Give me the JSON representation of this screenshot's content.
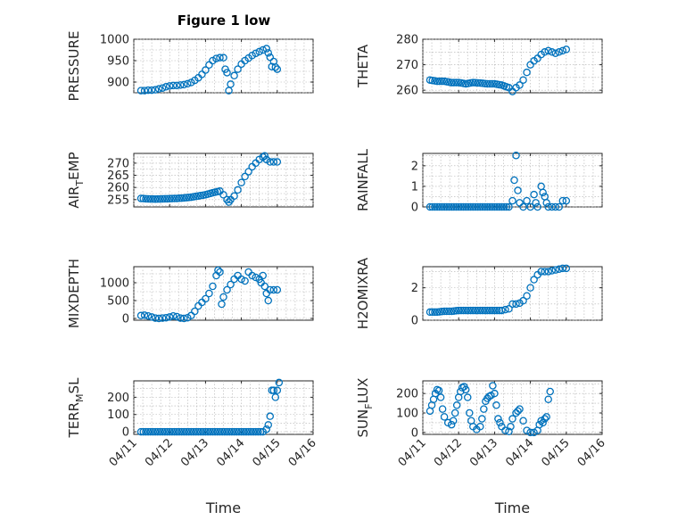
{
  "figure": {
    "title": "Figure 1 low",
    "marker_color": "#0072BD"
  },
  "chart_data": [
    {
      "id": "pressure",
      "type": "scatter",
      "title": "Figure 1 low",
      "ylabel": "PRESSURE",
      "xlabel": "",
      "xlim": [
        0,
        5
      ],
      "ylim": [
        875,
        1000
      ],
      "yticks": [
        900,
        950,
        1000
      ],
      "xticks": [
        0,
        1,
        2,
        3,
        4,
        5
      ],
      "xtick_labels": [
        "04/11",
        "04/12",
        "04/13",
        "04/14",
        "04/15",
        "04/16"
      ],
      "show_xtick_labels": false,
      "points": [
        [
          0.2,
          880
        ],
        [
          0.3,
          880
        ],
        [
          0.4,
          881
        ],
        [
          0.5,
          881
        ],
        [
          0.6,
          882
        ],
        [
          0.7,
          884
        ],
        [
          0.8,
          886
        ],
        [
          0.9,
          889
        ],
        [
          1.0,
          891
        ],
        [
          1.1,
          892
        ],
        [
          1.2,
          892
        ],
        [
          1.3,
          893
        ],
        [
          1.4,
          894
        ],
        [
          1.5,
          896
        ],
        [
          1.6,
          899
        ],
        [
          1.7,
          904
        ],
        [
          1.8,
          910
        ],
        [
          1.9,
          918
        ],
        [
          2.0,
          928
        ],
        [
          2.1,
          940
        ],
        [
          2.2,
          950
        ],
        [
          2.3,
          955
        ],
        [
          2.4,
          957
        ],
        [
          2.5,
          957
        ],
        [
          2.55,
          930
        ],
        [
          2.6,
          922
        ],
        [
          2.65,
          880
        ],
        [
          2.7,
          895
        ],
        [
          2.8,
          915
        ],
        [
          2.9,
          930
        ],
        [
          3.0,
          942
        ],
        [
          3.1,
          950
        ],
        [
          3.2,
          956
        ],
        [
          3.3,
          962
        ],
        [
          3.4,
          967
        ],
        [
          3.5,
          971
        ],
        [
          3.6,
          975
        ],
        [
          3.7,
          978
        ],
        [
          3.75,
          968
        ],
        [
          3.8,
          958
        ],
        [
          3.85,
          936
        ],
        [
          3.9,
          948
        ],
        [
          3.95,
          935
        ],
        [
          4.0,
          930
        ]
      ]
    },
    {
      "id": "theta",
      "type": "scatter",
      "ylabel": "THETA",
      "xlabel": "",
      "xlim": [
        0,
        5
      ],
      "ylim": [
        259,
        280
      ],
      "yticks": [
        260,
        270,
        280
      ],
      "xticks": [
        0,
        1,
        2,
        3,
        4,
        5
      ],
      "xtick_labels": [
        "04/11",
        "04/12",
        "04/13",
        "04/14",
        "04/15",
        "04/16"
      ],
      "show_xtick_labels": false,
      "points": [
        [
          0.2,
          264
        ],
        [
          0.4,
          263.5
        ],
        [
          0.6,
          263.5
        ],
        [
          0.8,
          263
        ],
        [
          1.0,
          263
        ],
        [
          1.2,
          262.5
        ],
        [
          1.4,
          263
        ],
        [
          1.6,
          262.8
        ],
        [
          1.8,
          262.5
        ],
        [
          2.0,
          262.5
        ],
        [
          2.2,
          262
        ],
        [
          2.4,
          261
        ],
        [
          2.5,
          259.5
        ],
        [
          2.6,
          261
        ],
        [
          2.7,
          262
        ],
        [
          2.8,
          264
        ],
        [
          2.9,
          267
        ],
        [
          3.0,
          270
        ],
        [
          3.1,
          271.5
        ],
        [
          3.2,
          272.5
        ],
        [
          3.3,
          274
        ],
        [
          3.4,
          275
        ],
        [
          3.5,
          275.5
        ],
        [
          3.6,
          275
        ],
        [
          3.7,
          274.5
        ],
        [
          3.8,
          275
        ],
        [
          3.9,
          275.5
        ],
        [
          4.0,
          276
        ]
      ]
    },
    {
      "id": "air_temp",
      "type": "scatter",
      "ylabel": "AIR_TEMP",
      "ylabel_main": "AIR",
      "ylabel_sub": "T",
      "ylabel_rest": "EMP",
      "xlabel": "",
      "xlim": [
        0,
        5
      ],
      "ylim": [
        252,
        274
      ],
      "yticks": [
        255,
        260,
        265,
        270
      ],
      "xticks": [
        0,
        1,
        2,
        3,
        4,
        5
      ],
      "xtick_labels": [
        "04/11",
        "04/12",
        "04/13",
        "04/14",
        "04/15",
        "04/16"
      ],
      "show_xtick_labels": false,
      "points": [
        [
          0.2,
          255.5
        ],
        [
          0.4,
          255.3
        ],
        [
          0.6,
          255.2
        ],
        [
          0.8,
          255.3
        ],
        [
          1.0,
          255.4
        ],
        [
          1.2,
          255.5
        ],
        [
          1.4,
          255.7
        ],
        [
          1.6,
          256.0
        ],
        [
          1.8,
          256.5
        ],
        [
          2.0,
          257.0
        ],
        [
          2.2,
          257.8
        ],
        [
          2.4,
          258.5
        ],
        [
          2.5,
          257.0
        ],
        [
          2.6,
          255.0
        ],
        [
          2.65,
          254.0
        ],
        [
          2.7,
          255.0
        ],
        [
          2.8,
          256.5
        ],
        [
          2.9,
          259.0
        ],
        [
          3.0,
          262.0
        ],
        [
          3.1,
          264.5
        ],
        [
          3.2,
          266.5
        ],
        [
          3.3,
          268.5
        ],
        [
          3.4,
          270.0
        ],
        [
          3.5,
          271.5
        ],
        [
          3.6,
          272.5
        ],
        [
          3.65,
          273.0
        ],
        [
          3.7,
          271.5
        ],
        [
          3.8,
          270.5
        ],
        [
          3.9,
          270.5
        ],
        [
          4.0,
          270.5
        ]
      ]
    },
    {
      "id": "rainfall",
      "type": "scatter",
      "ylabel": "RAINFALL",
      "xlabel": "",
      "xlim": [
        0,
        5
      ],
      "ylim": [
        0,
        2.6
      ],
      "yticks": [
        0,
        1,
        2
      ],
      "xticks": [
        0,
        1,
        2,
        3,
        4,
        5
      ],
      "xtick_labels": [
        "04/11",
        "04/12",
        "04/13",
        "04/14",
        "04/15",
        "04/16"
      ],
      "show_xtick_labels": false,
      "points": [
        [
          0.2,
          0
        ],
        [
          0.4,
          0
        ],
        [
          0.6,
          0
        ],
        [
          0.8,
          0
        ],
        [
          1.0,
          0
        ],
        [
          1.2,
          0
        ],
        [
          1.4,
          0
        ],
        [
          1.6,
          0
        ],
        [
          1.8,
          0
        ],
        [
          2.0,
          0
        ],
        [
          2.2,
          0
        ],
        [
          2.4,
          0
        ],
        [
          2.5,
          0.3
        ],
        [
          2.55,
          1.3
        ],
        [
          2.6,
          2.5
        ],
        [
          2.65,
          0.8
        ],
        [
          2.7,
          0.2
        ],
        [
          2.8,
          0
        ],
        [
          2.9,
          0.3
        ],
        [
          3.0,
          0
        ],
        [
          3.1,
          0.6
        ],
        [
          3.15,
          0.2
        ],
        [
          3.2,
          0
        ],
        [
          3.3,
          1.0
        ],
        [
          3.35,
          0.7
        ],
        [
          3.4,
          0.5
        ],
        [
          3.45,
          0.2
        ],
        [
          3.5,
          0
        ],
        [
          3.6,
          0
        ],
        [
          3.7,
          0
        ],
        [
          3.8,
          0
        ],
        [
          3.9,
          0.3
        ],
        [
          4.0,
          0.3
        ]
      ]
    },
    {
      "id": "mixdepth",
      "type": "scatter",
      "ylabel": "MIXDEPTH",
      "xlabel": "",
      "xlim": [
        0,
        5
      ],
      "ylim": [
        -50,
        1450
      ],
      "yticks": [
        0,
        500,
        1000
      ],
      "xticks": [
        0,
        1,
        2,
        3,
        4,
        5
      ],
      "xtick_labels": [
        "04/11",
        "04/12",
        "04/13",
        "04/14",
        "04/15",
        "04/16"
      ],
      "show_xtick_labels": false,
      "points": [
        [
          0.2,
          80
        ],
        [
          0.3,
          90
        ],
        [
          0.4,
          70
        ],
        [
          0.5,
          40
        ],
        [
          0.6,
          10
        ],
        [
          0.7,
          0
        ],
        [
          0.8,
          10
        ],
        [
          0.9,
          20
        ],
        [
          1.0,
          40
        ],
        [
          1.1,
          70
        ],
        [
          1.2,
          50
        ],
        [
          1.3,
          10
        ],
        [
          1.4,
          0
        ],
        [
          1.5,
          20
        ],
        [
          1.6,
          80
        ],
        [
          1.7,
          200
        ],
        [
          1.8,
          350
        ],
        [
          1.9,
          450
        ],
        [
          2.0,
          550
        ],
        [
          2.1,
          700
        ],
        [
          2.2,
          900
        ],
        [
          2.3,
          1200
        ],
        [
          2.35,
          1350
        ],
        [
          2.4,
          1300
        ],
        [
          2.45,
          400
        ],
        [
          2.5,
          600
        ],
        [
          2.6,
          800
        ],
        [
          2.7,
          950
        ],
        [
          2.8,
          1100
        ],
        [
          2.9,
          1200
        ],
        [
          3.0,
          1100
        ],
        [
          3.1,
          1050
        ],
        [
          3.2,
          1300
        ],
        [
          3.3,
          1200
        ],
        [
          3.4,
          1150
        ],
        [
          3.5,
          1100
        ],
        [
          3.55,
          1000
        ],
        [
          3.6,
          1200
        ],
        [
          3.65,
          900
        ],
        [
          3.7,
          700
        ],
        [
          3.75,
          500
        ],
        [
          3.8,
          800
        ],
        [
          3.9,
          800
        ],
        [
          4.0,
          800
        ]
      ]
    },
    {
      "id": "h2omixra",
      "type": "scatter",
      "ylabel": "H2OMIXRA",
      "xlabel": "",
      "xlim": [
        0,
        5
      ],
      "ylim": [
        0,
        3.3
      ],
      "yticks": [
        0,
        2
      ],
      "xticks": [
        0,
        1,
        2,
        3,
        4,
        5
      ],
      "xtick_labels": [
        "04/11",
        "04/12",
        "04/13",
        "04/14",
        "04/15",
        "04/16"
      ],
      "show_xtick_labels": false,
      "points": [
        [
          0.2,
          0.5
        ],
        [
          0.4,
          0.5
        ],
        [
          0.6,
          0.55
        ],
        [
          0.8,
          0.55
        ],
        [
          1.0,
          0.6
        ],
        [
          1.2,
          0.6
        ],
        [
          1.4,
          0.6
        ],
        [
          1.6,
          0.6
        ],
        [
          1.8,
          0.6
        ],
        [
          2.0,
          0.6
        ],
        [
          2.2,
          0.6
        ],
        [
          2.3,
          0.65
        ],
        [
          2.4,
          0.7
        ],
        [
          2.5,
          1.0
        ],
        [
          2.6,
          1.0
        ],
        [
          2.7,
          1.05
        ],
        [
          2.8,
          1.2
        ],
        [
          2.9,
          1.5
        ],
        [
          3.0,
          2.0
        ],
        [
          3.1,
          2.5
        ],
        [
          3.2,
          2.8
        ],
        [
          3.3,
          3.0
        ],
        [
          3.4,
          3.0
        ],
        [
          3.5,
          3.0
        ],
        [
          3.6,
          3.05
        ],
        [
          3.7,
          3.1
        ],
        [
          3.8,
          3.15
        ],
        [
          3.9,
          3.2
        ],
        [
          4.0,
          3.2
        ]
      ]
    },
    {
      "id": "terr_msl",
      "type": "scatter",
      "ylabel": "TERR_MSL",
      "ylabel_main": "TERR",
      "ylabel_sub": "M",
      "ylabel_rest": "SL",
      "xlabel": "Time",
      "xlim": [
        0,
        5
      ],
      "ylim": [
        -15,
        295
      ],
      "yticks": [
        0,
        100,
        200
      ],
      "xticks": [
        0,
        1,
        2,
        3,
        4,
        5
      ],
      "xtick_labels": [
        "04/11",
        "04/12",
        "04/13",
        "04/14",
        "04/15",
        "04/16"
      ],
      "show_xtick_labels": true,
      "points": [
        [
          0.2,
          0
        ],
        [
          0.4,
          0
        ],
        [
          0.6,
          0
        ],
        [
          0.8,
          0
        ],
        [
          1.0,
          0
        ],
        [
          1.2,
          0
        ],
        [
          1.4,
          0
        ],
        [
          1.6,
          0
        ],
        [
          1.8,
          0
        ],
        [
          2.0,
          0
        ],
        [
          2.2,
          0
        ],
        [
          2.4,
          0
        ],
        [
          2.6,
          0
        ],
        [
          2.8,
          0
        ],
        [
          3.0,
          0
        ],
        [
          3.2,
          0
        ],
        [
          3.4,
          0
        ],
        [
          3.6,
          0
        ],
        [
          3.7,
          15
        ],
        [
          3.75,
          40
        ],
        [
          3.8,
          90
        ],
        [
          3.85,
          240
        ],
        [
          3.9,
          240
        ],
        [
          3.95,
          200
        ],
        [
          4.0,
          240
        ],
        [
          4.05,
          285
        ]
      ]
    },
    {
      "id": "sun_flux",
      "type": "scatter",
      "ylabel": "SUN_FLUX",
      "ylabel_main": "SUN",
      "ylabel_sub": "F",
      "ylabel_rest": "LUX",
      "xlabel": "Time",
      "xlim": [
        0,
        5
      ],
      "ylim": [
        -10,
        265
      ],
      "yticks": [
        0,
        100,
        200
      ],
      "xticks": [
        0,
        1,
        2,
        3,
        4,
        5
      ],
      "xtick_labels": [
        "04/11",
        "04/12",
        "04/13",
        "04/14",
        "04/15",
        "04/16"
      ],
      "show_xtick_labels": true,
      "points": [
        [
          0.2,
          110
        ],
        [
          0.25,
          140
        ],
        [
          0.3,
          170
        ],
        [
          0.35,
          200
        ],
        [
          0.4,
          220
        ],
        [
          0.45,
          215
        ],
        [
          0.5,
          180
        ],
        [
          0.55,
          120
        ],
        [
          0.6,
          80
        ],
        [
          0.7,
          50
        ],
        [
          0.8,
          40
        ],
        [
          0.85,
          60
        ],
        [
          0.9,
          100
        ],
        [
          0.95,
          140
        ],
        [
          1.0,
          180
        ],
        [
          1.05,
          210
        ],
        [
          1.1,
          230
        ],
        [
          1.15,
          235
        ],
        [
          1.2,
          220
        ],
        [
          1.25,
          180
        ],
        [
          1.3,
          100
        ],
        [
          1.35,
          60
        ],
        [
          1.4,
          30
        ],
        [
          1.5,
          15
        ],
        [
          1.6,
          30
        ],
        [
          1.65,
          70
        ],
        [
          1.7,
          120
        ],
        [
          1.75,
          160
        ],
        [
          1.8,
          175
        ],
        [
          1.85,
          185
        ],
        [
          1.9,
          190
        ],
        [
          1.95,
          240
        ],
        [
          2.0,
          200
        ],
        [
          2.05,
          140
        ],
        [
          2.1,
          70
        ],
        [
          2.15,
          50
        ],
        [
          2.2,
          30
        ],
        [
          2.3,
          10
        ],
        [
          2.4,
          5
        ],
        [
          2.45,
          30
        ],
        [
          2.5,
          70
        ],
        [
          2.6,
          100
        ],
        [
          2.65,
          110
        ],
        [
          2.7,
          120
        ],
        [
          2.8,
          60
        ],
        [
          2.9,
          10
        ],
        [
          3.0,
          0
        ],
        [
          3.1,
          0
        ],
        [
          3.2,
          10
        ],
        [
          3.25,
          40
        ],
        [
          3.3,
          60
        ],
        [
          3.35,
          50
        ],
        [
          3.4,
          70
        ],
        [
          3.45,
          80
        ],
        [
          3.5,
          170
        ],
        [
          3.55,
          210
        ]
      ]
    }
  ]
}
